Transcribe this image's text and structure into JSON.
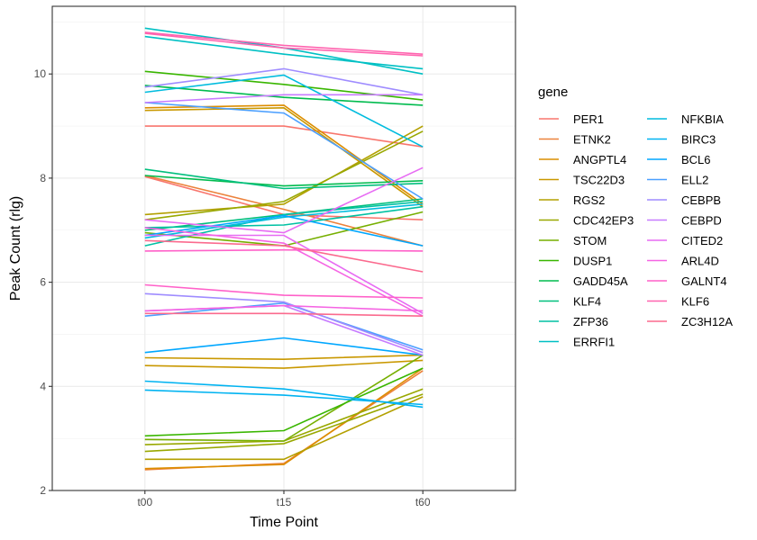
{
  "chart_data": {
    "type": "line",
    "xlabel": "Time Point",
    "ylabel": "Peak Count (rlg)",
    "x": [
      "t00",
      "t15",
      "t60"
    ],
    "ylim": [
      2,
      11.3
    ],
    "yticks": [
      2,
      4,
      6,
      8,
      10
    ],
    "grid": true,
    "legend_title": "gene",
    "legend_position": "right",
    "series": [
      {
        "name": "PER1",
        "color": "#F8766D",
        "lines": [
          [
            8.03,
            7.3,
            7.2
          ],
          [
            9.0,
            9.0,
            8.6
          ]
        ]
      },
      {
        "name": "ETNK2",
        "color": "#EC823C",
        "lines": [
          [
            8.05,
            7.4,
            6.7
          ],
          [
            2.4,
            2.52,
            4.3
          ]
        ]
      },
      {
        "name": "ANGPTL4",
        "color": "#DC8D00",
        "lines": [
          [
            2.42,
            2.5,
            4.35
          ],
          [
            9.35,
            9.4,
            7.5
          ]
        ]
      },
      {
        "name": "TSC22D3",
        "color": "#C99800",
        "lines": [
          [
            4.55,
            4.52,
            4.6
          ],
          [
            4.4,
            4.35,
            4.5
          ],
          [
            9.3,
            9.35,
            7.45
          ]
        ]
      },
      {
        "name": "RGS2",
        "color": "#B3A000",
        "lines": [
          [
            7.3,
            7.5,
            9.0
          ],
          [
            2.6,
            2.6,
            3.8
          ]
        ]
      },
      {
        "name": "CDC42EP3",
        "color": "#99A800",
        "lines": [
          [
            7.2,
            7.55,
            8.9
          ],
          [
            2.88,
            2.95,
            3.95
          ],
          [
            2.75,
            2.9,
            3.85
          ]
        ]
      },
      {
        "name": "STOM",
        "color": "#76AF00",
        "lines": [
          [
            2.98,
            2.95,
            4.6
          ],
          [
            6.95,
            6.7,
            7.35
          ]
        ]
      },
      {
        "name": "DUSP1",
        "color": "#39B600",
        "lines": [
          [
            10.05,
            9.8,
            9.5
          ],
          [
            3.05,
            3.15,
            4.35
          ]
        ]
      },
      {
        "name": "GADD45A",
        "color": "#00BB4E",
        "lines": [
          [
            9.78,
            9.55,
            9.4
          ],
          [
            8.05,
            7.85,
            7.95
          ]
        ]
      },
      {
        "name": "KLF4",
        "color": "#00BF7D",
        "lines": [
          [
            8.17,
            7.8,
            7.9
          ],
          [
            7.0,
            7.3,
            7.6
          ]
        ]
      },
      {
        "name": "ZFP36",
        "color": "#00C1A3",
        "lines": [
          [
            6.7,
            7.3,
            7.55
          ],
          [
            7.05,
            7.1,
            7.45
          ]
        ]
      },
      {
        "name": "ERRFI1",
        "color": "#00C0C4",
        "lines": [
          [
            10.72,
            10.38,
            10.1
          ],
          [
            10.88,
            10.5,
            10.0
          ]
        ]
      },
      {
        "name": "NFKBIA",
        "color": "#00BCDE",
        "lines": [
          [
            9.65,
            9.98,
            8.6
          ],
          [
            6.85,
            7.25,
            7.5
          ]
        ]
      },
      {
        "name": "BIRC3",
        "color": "#00B3F1",
        "lines": [
          [
            4.1,
            3.95,
            3.6
          ],
          [
            3.93,
            3.83,
            3.65
          ]
        ]
      },
      {
        "name": "BCL6",
        "color": "#00A7FF",
        "lines": [
          [
            4.65,
            4.93,
            4.6
          ],
          [
            6.9,
            7.28,
            6.7
          ]
        ]
      },
      {
        "name": "ELL2",
        "color": "#4B9FFF",
        "lines": [
          [
            9.45,
            9.25,
            7.6
          ],
          [
            5.35,
            5.6,
            4.7
          ]
        ]
      },
      {
        "name": "CEBPB",
        "color": "#9F8CFF",
        "lines": [
          [
            9.75,
            10.1,
            9.6
          ],
          [
            5.78,
            5.62,
            4.65
          ]
        ]
      },
      {
        "name": "CEBPD",
        "color": "#C77CFF",
        "lines": [
          [
            9.45,
            9.6,
            9.6
          ],
          [
            5.45,
            5.55,
            4.6
          ]
        ]
      },
      {
        "name": "CITED2",
        "color": "#E76BF3",
        "lines": [
          [
            7.2,
            6.95,
            8.2
          ],
          [
            6.9,
            6.9,
            5.4
          ]
        ]
      },
      {
        "name": "ARL4D",
        "color": "#F564E3",
        "lines": [
          [
            7.05,
            6.75,
            5.35
          ],
          [
            5.45,
            5.55,
            5.45
          ]
        ]
      },
      {
        "name": "GALNT4",
        "color": "#FF61C9",
        "lines": [
          [
            5.95,
            5.75,
            5.7
          ],
          [
            6.6,
            6.62,
            6.6
          ]
        ]
      },
      {
        "name": "KLF6",
        "color": "#FF64AF",
        "lines": [
          [
            10.8,
            10.55,
            10.38
          ],
          [
            10.78,
            10.5,
            10.35
          ]
        ]
      },
      {
        "name": "ZC3H12A",
        "color": "#FB6A8E",
        "lines": [
          [
            6.8,
            6.7,
            6.2
          ],
          [
            5.4,
            5.4,
            5.35
          ]
        ]
      }
    ]
  }
}
